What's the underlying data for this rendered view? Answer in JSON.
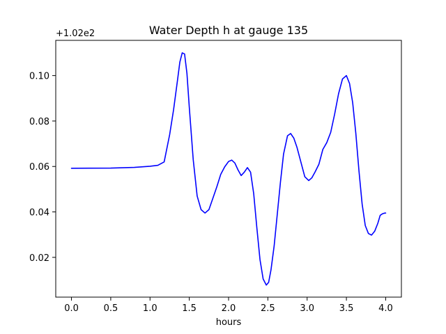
{
  "chart_data": {
    "type": "line",
    "title": "Water Depth h at gauge 135",
    "xlabel": "hours",
    "ylabel": "",
    "y_offset_label": "+1.02e2",
    "xlim": [
      -0.2,
      4.2
    ],
    "ylim": [
      0.0025,
      0.1155
    ],
    "x_ticks": [
      0.0,
      0.5,
      1.0,
      1.5,
      2.0,
      2.5,
      3.0,
      3.5,
      4.0
    ],
    "x_tick_labels": [
      "0.0",
      "0.5",
      "1.0",
      "1.5",
      "2.0",
      "2.5",
      "3.0",
      "3.5",
      "4.0"
    ],
    "y_ticks": [
      0.02,
      0.04,
      0.06,
      0.08,
      0.1
    ],
    "y_tick_labels": [
      "0.02",
      "0.04",
      "0.06",
      "0.08",
      "0.10"
    ],
    "grid": false,
    "series": [
      {
        "color": "#0000ff",
        "x": [
          0.0,
          0.5,
          0.8,
          1.0,
          1.1,
          1.18,
          1.25,
          1.3,
          1.35,
          1.38,
          1.41,
          1.44,
          1.47,
          1.5,
          1.55,
          1.6,
          1.65,
          1.7,
          1.75,
          1.8,
          1.85,
          1.9,
          1.95,
          2.0,
          2.04,
          2.08,
          2.12,
          2.16,
          2.2,
          2.24,
          2.28,
          2.32,
          2.36,
          2.4,
          2.44,
          2.48,
          2.51,
          2.54,
          2.58,
          2.62,
          2.66,
          2.7,
          2.75,
          2.79,
          2.83,
          2.87,
          2.92,
          2.97,
          3.02,
          3.06,
          3.1,
          3.15,
          3.2,
          3.25,
          3.3,
          3.35,
          3.4,
          3.45,
          3.5,
          3.54,
          3.58,
          3.62,
          3.66,
          3.7,
          3.74,
          3.78,
          3.82,
          3.86,
          3.9,
          3.93,
          3.96,
          3.99,
          4.0
        ],
        "y": [
          0.0592,
          0.0593,
          0.0596,
          0.0601,
          0.0605,
          0.062,
          0.074,
          0.085,
          0.098,
          0.106,
          0.11,
          0.1095,
          0.101,
          0.086,
          0.063,
          0.047,
          0.041,
          0.0395,
          0.041,
          0.046,
          0.051,
          0.0565,
          0.0598,
          0.0622,
          0.0628,
          0.0615,
          0.0585,
          0.056,
          0.0575,
          0.0595,
          0.0575,
          0.048,
          0.033,
          0.019,
          0.0105,
          0.0078,
          0.009,
          0.0145,
          0.025,
          0.039,
          0.053,
          0.0655,
          0.0735,
          0.0745,
          0.0725,
          0.0685,
          0.062,
          0.0555,
          0.0538,
          0.055,
          0.0575,
          0.061,
          0.0675,
          0.0705,
          0.075,
          0.083,
          0.092,
          0.0985,
          0.1,
          0.0965,
          0.088,
          0.0745,
          0.058,
          0.0435,
          0.034,
          0.0305,
          0.0298,
          0.0315,
          0.035,
          0.0385,
          0.0392,
          0.0395,
          0.0395
        ]
      }
    ]
  }
}
